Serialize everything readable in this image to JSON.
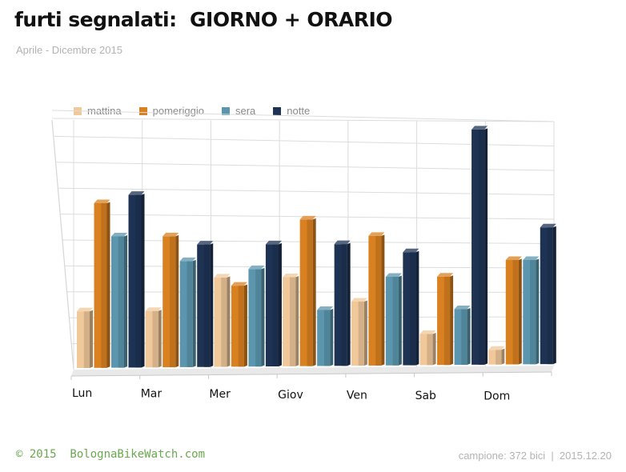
{
  "header": {
    "title": "furti segnalati:  GIORNO + ORARIO",
    "subtitle": "Aprile - Dicembre 2015"
  },
  "footer": {
    "credit": "© 2015  BolognaBikeWatch.com",
    "sample": "campione: 372 bici  |  2015.12.20"
  },
  "chart_data": {
    "type": "bar",
    "categories": [
      "Lun",
      "Mar",
      "Mer",
      "Giov",
      "Ven",
      "Sab",
      "Dom"
    ],
    "series": [
      {
        "name": "mattina",
        "color": "#f0c89a",
        "values": [
          7,
          7,
          11,
          11,
          8,
          4,
          2
        ]
      },
      {
        "name": "pomeriggio",
        "color": "#d98020",
        "values": [
          20,
          16,
          10,
          18,
          16,
          11,
          13
        ]
      },
      {
        "name": "sera",
        "color": "#5b96ae",
        "values": [
          16,
          13,
          12,
          7,
          11,
          7,
          13
        ]
      },
      {
        "name": "notte",
        "color": "#1e3354",
        "values": [
          21,
          15,
          15,
          15,
          14,
          29,
          17
        ]
      }
    ],
    "ylim": [
      0,
      30
    ],
    "grid": true,
    "legend_position": "top-left",
    "style": "3d-perspective"
  }
}
